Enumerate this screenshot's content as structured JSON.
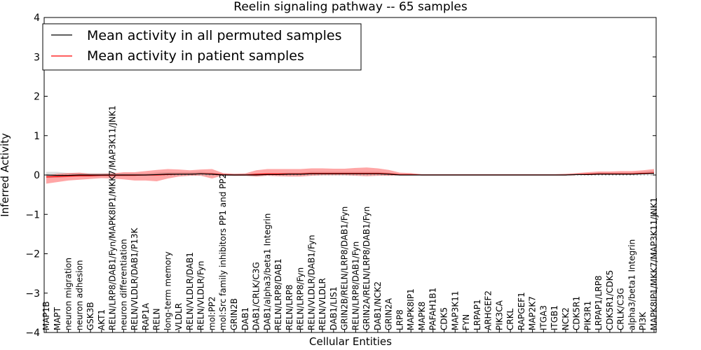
{
  "chart_data": {
    "type": "line",
    "title": "Reelin signaling pathway -- 65 samples",
    "xlabel": "Cellular Entities",
    "ylabel": "Inferred Activity",
    "ylim": [
      -4,
      4
    ],
    "yticks": [
      "−4",
      "−3",
      "−2",
      "−1",
      "0",
      "1",
      "2",
      "3",
      "4"
    ],
    "legend_position": "top-left",
    "categories": [
      "MAP1B",
      "MAPT",
      "neuron migration",
      "neuron adhesion",
      "GSK3B",
      "AKT1",
      "RELN/LRP8/DAB1/Fyn/MAPK8IP1/MKK7/MAP3K11/JNK1",
      "neuron differentiation",
      "RELN/VLDLR/DAB1/P13K",
      "RAP1A",
      "RELN",
      "long-term memory",
      "VLDLR",
      "RELN/VLDLR/DAB1",
      "RELN/VLDLR/Fyn",
      "mol:PP2",
      "mol:Src family inhibitors PP1 and PP2",
      "GRIN2B",
      "DAB1",
      "DAB1/CRLK/C3G",
      "DAB1/alpha3/beta1 Integrin",
      "RELN/LRP8/DAB1",
      "RELN/LRP8",
      "RELN/LRP8/Fyn",
      "RELN/VLDLR/DAB1/Fyn",
      "RELN/VLDLR",
      "DAB1/LIS1",
      "GRIN2B/RELN/LRP8/DAB1/Fyn",
      "RELN/LRP8/DAB1/Fyn",
      "GRIN2A/RELN/LRP8/DAB1/Fyn",
      "DAB1/NCK2",
      "GRIN2A",
      "LRP8",
      "MAPK8IP1",
      "MAPK8",
      "PAFAH1B1",
      "CDK5",
      "MAP3K11",
      "FYN",
      "LRPAP1",
      "ARHGEF2",
      "PIK3CA",
      "CRKL",
      "RAPGEF1",
      "MAP2K7",
      "ITGA3",
      "ITGB1",
      "NCK2",
      "CDK5R1",
      "PIK3R1",
      "LRPAP1/LRP8",
      "CDK5R1/CDK5",
      "CRLK/C3G",
      "alpha3/beta1 Integrin",
      "PI3K",
      "MAPK8IP1/MKK7/MAP3K11/JNK1"
    ],
    "series": [
      {
        "name": "Mean activity in all permuted samples",
        "color": "#000000",
        "values": [
          0.0,
          -0.01,
          -0.01,
          0.0,
          0.0,
          0.0,
          0.0,
          0.0,
          0.0,
          0.0,
          0.01,
          0.02,
          0.02,
          0.02,
          0.03,
          0.02,
          0.0,
          0.0,
          0.0,
          0.0,
          0.01,
          0.01,
          0.02,
          0.02,
          0.03,
          0.03,
          0.03,
          0.03,
          0.03,
          0.03,
          0.03,
          0.02,
          0.0,
          0.0,
          0.0,
          0.0,
          0.0,
          0.0,
          0.0,
          0.0,
          0.0,
          0.0,
          0.0,
          0.0,
          0.0,
          0.0,
          0.0,
          0.0,
          0.01,
          0.01,
          0.02,
          0.02,
          0.02,
          0.02,
          0.03,
          0.04
        ],
        "band": {
          "color": "#bbbbbb",
          "lower": [
            -0.07,
            -0.06,
            -0.04,
            -0.03,
            -0.03,
            -0.03,
            -0.03,
            -0.03,
            -0.02,
            -0.02,
            -0.02,
            -0.01,
            -0.01,
            -0.01,
            -0.01,
            -0.01,
            -0.02,
            -0.02,
            -0.01,
            -0.01,
            -0.01,
            -0.01,
            -0.01,
            -0.01,
            -0.01,
            -0.01,
            -0.01,
            -0.01,
            -0.01,
            -0.01,
            -0.01,
            -0.01,
            -0.01,
            -0.01,
            -0.01,
            -0.01,
            -0.01,
            -0.01,
            -0.01,
            -0.01,
            -0.01,
            -0.01,
            -0.01,
            -0.01,
            -0.01,
            -0.01,
            -0.01,
            -0.01,
            -0.01,
            -0.01,
            -0.01,
            -0.01,
            -0.01,
            -0.01,
            -0.01,
            -0.01
          ],
          "upper": [
            0.08,
            0.09,
            0.06,
            0.05,
            0.05,
            0.05,
            0.05,
            0.04,
            0.04,
            0.04,
            0.05,
            0.05,
            0.05,
            0.05,
            0.05,
            0.04,
            0.03,
            0.03,
            0.03,
            0.03,
            0.04,
            0.04,
            0.04,
            0.04,
            0.05,
            0.05,
            0.05,
            0.05,
            0.05,
            0.05,
            0.05,
            0.04,
            0.02,
            0.02,
            0.02,
            0.02,
            0.02,
            0.02,
            0.02,
            0.02,
            0.02,
            0.02,
            0.02,
            0.02,
            0.02,
            0.02,
            0.02,
            0.02,
            0.03,
            0.03,
            0.04,
            0.04,
            0.04,
            0.04,
            0.05,
            0.06
          ]
        }
      },
      {
        "name": "Mean activity in patient samples",
        "color": "#ff0000",
        "values": [
          -0.05,
          -0.04,
          -0.03,
          -0.02,
          -0.02,
          -0.01,
          -0.01,
          -0.01,
          -0.01,
          0.0,
          0.0,
          0.01,
          0.02,
          0.02,
          0.03,
          0.03,
          0.01,
          0.0,
          0.0,
          0.02,
          0.03,
          0.03,
          0.03,
          0.03,
          0.04,
          0.04,
          0.04,
          0.04,
          0.04,
          0.04,
          0.04,
          0.03,
          0.01,
          0.01,
          0.0,
          0.0,
          0.0,
          0.0,
          0.0,
          0.0,
          0.0,
          0.0,
          0.0,
          0.0,
          0.0,
          0.0,
          0.0,
          0.0,
          0.01,
          0.02,
          0.03,
          0.03,
          0.03,
          0.03,
          0.04,
          0.05
        ],
        "band": {
          "color": "#ff0000",
          "lower": [
            -0.17,
            -0.14,
            -0.11,
            -0.1,
            -0.08,
            -0.07,
            -0.08,
            -0.1,
            -0.13,
            -0.14,
            -0.16,
            -0.1,
            -0.06,
            -0.04,
            -0.05,
            -0.12,
            -0.02,
            -0.02,
            -0.02,
            -0.06,
            -0.05,
            -0.06,
            -0.07,
            -0.07,
            -0.06,
            -0.05,
            -0.05,
            -0.05,
            -0.06,
            -0.07,
            -0.06,
            -0.05,
            -0.02,
            -0.01,
            -0.01,
            -0.01,
            -0.01,
            -0.01,
            -0.01,
            -0.01,
            -0.01,
            -0.01,
            -0.01,
            -0.01,
            -0.01,
            -0.01,
            -0.01,
            -0.01,
            -0.01,
            -0.01,
            -0.01,
            -0.01,
            -0.01,
            -0.01,
            -0.01,
            0.0
          ],
          "upper": [
            0.04,
            0.07,
            0.08,
            0.08,
            0.05,
            0.04,
            0.05,
            0.08,
            0.08,
            0.1,
            0.13,
            0.14,
            0.12,
            0.1,
            0.11,
            0.12,
            0.04,
            0.03,
            0.04,
            0.1,
            0.12,
            0.12,
            0.12,
            0.12,
            0.13,
            0.13,
            0.12,
            0.12,
            0.14,
            0.15,
            0.13,
            0.1,
            0.05,
            0.04,
            0.02,
            0.02,
            0.02,
            0.02,
            0.02,
            0.02,
            0.02,
            0.02,
            0.02,
            0.02,
            0.02,
            0.02,
            0.02,
            0.03,
            0.04,
            0.05,
            0.06,
            0.06,
            0.07,
            0.07,
            0.08,
            0.1
          ]
        }
      }
    ]
  }
}
